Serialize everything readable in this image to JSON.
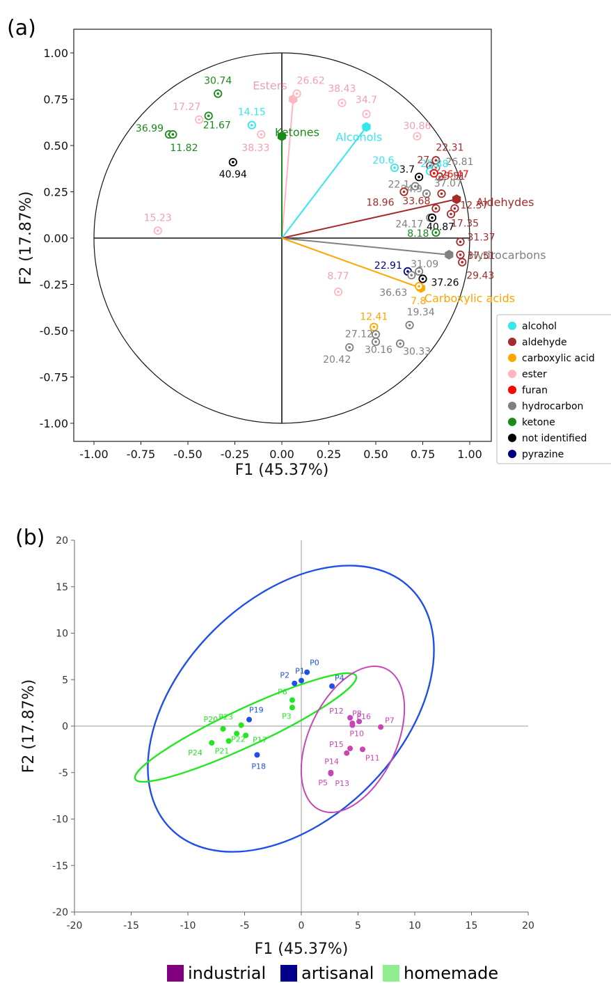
{
  "panels": {
    "a": "(a)",
    "b": "(b)"
  },
  "colors": {
    "alcohol": "#33e6f0",
    "aldehyde": "#a52a2a",
    "carboxylic acid": "#ffa500",
    "ester": "#ffb6c1",
    "furan": "#ff0000",
    "hydrocarbon": "#808080",
    "ketone": "#1a8a1a",
    "not identified": "#000000",
    "pyrazine": "#000080",
    "industrial": "#c845b4",
    "artisanal": "#1f4fe6",
    "homemade": "#22e622",
    "legend_industrial": "#800080",
    "legend_artisanal": "#00008b",
    "legend_homemade": "#90ee90"
  },
  "chart_data": [
    {
      "type": "scatter",
      "title": "",
      "xlabel": "F1 (45.37%)",
      "ylabel": "F2 (17.87%)",
      "xlim": [
        -1.1,
        1.05
      ],
      "ylim": [
        -1.1,
        1.1
      ],
      "xticks": [
        "-1.00",
        "-0.75",
        "-0.50",
        "-0.25",
        "0.00",
        "0.25",
        "0.50",
        "0.75",
        "1.00"
      ],
      "yticks": [
        "1.00",
        "0.75",
        "0.50",
        "0.25",
        "0.00",
        "-0.25",
        "-0.50",
        "-0.75",
        "-1.00"
      ],
      "legend": [
        "alcohol",
        "aldehyde",
        "carboxylic acid",
        "ester",
        "furan",
        "hydrocarbon",
        "ketone",
        "not identified",
        "pyrazine"
      ],
      "legend_position": "right",
      "vectors": [
        {
          "label": "Esters",
          "cls": "ester",
          "x": 0.06,
          "y": 0.75
        },
        {
          "label": "Ketones",
          "cls": "ketone",
          "x": 0.0,
          "y": 0.55
        },
        {
          "label": "Alcohols",
          "cls": "alcohol",
          "x": 0.45,
          "y": 0.6
        },
        {
          "label": "Aldehydes",
          "cls": "aldehyde",
          "x": 0.93,
          "y": 0.21
        },
        {
          "label": "Hydrocarbons",
          "cls": "hydrocarbon",
          "x": 0.89,
          "y": -0.09
        },
        {
          "label": "Carboxylic acids",
          "cls": "carboxylic acid",
          "x": 0.74,
          "y": -0.27
        }
      ],
      "points": [
        {
          "label": "30.74",
          "cls": "ketone",
          "x": -0.34,
          "y": 0.78
        },
        {
          "label": "26.62",
          "cls": "ester",
          "x": 0.08,
          "y": 0.78
        },
        {
          "label": "38.43",
          "cls": "ester",
          "x": 0.32,
          "y": 0.73
        },
        {
          "label": "34.7",
          "cls": "ester",
          "x": 0.45,
          "y": 0.67
        },
        {
          "label": "17.27",
          "cls": "ester",
          "x": -0.44,
          "y": 0.64
        },
        {
          "label": "21.67",
          "cls": "ketone",
          "x": -0.39,
          "y": 0.66
        },
        {
          "label": "14.15",
          "cls": "alcohol",
          "x": -0.16,
          "y": 0.61
        },
        {
          "label": "36.99",
          "cls": "ketone",
          "x": -0.6,
          "y": 0.56
        },
        {
          "label": "11.82",
          "cls": "ketone",
          "x": -0.58,
          "y": 0.56
        },
        {
          "label": "38.33",
          "cls": "ester",
          "x": -0.11,
          "y": 0.56
        },
        {
          "label": "40.94",
          "cls": "not identified",
          "x": -0.26,
          "y": 0.41
        },
        {
          "label": "30.86",
          "cls": "ester",
          "x": 0.72,
          "y": 0.55
        },
        {
          "label": "22.31",
          "cls": "aldehyde",
          "x": 0.82,
          "y": 0.42
        },
        {
          "label": "27",
          "cls": "aldehyde",
          "x": 0.79,
          "y": 0.39
        },
        {
          "label": "26.81",
          "cls": "hydrocarbon",
          "x": 0.82,
          "y": 0.38
        },
        {
          "label": "25.88",
          "cls": "alcohol",
          "x": 0.79,
          "y": 0.36
        },
        {
          "label": "37.07",
          "cls": "hydrocarbon",
          "x": 0.84,
          "y": 0.33
        },
        {
          "label": "20.6",
          "cls": "alcohol",
          "x": 0.6,
          "y": 0.38
        },
        {
          "label": "3.7",
          "cls": "not identified",
          "x": 0.73,
          "y": 0.33
        },
        {
          "label": "26.47",
          "cls": "furan",
          "x": 0.81,
          "y": 0.35
        },
        {
          "label": "22.1",
          "cls": "hydrocarbon",
          "x": 0.71,
          "y": 0.28
        },
        {
          "label": "34.9",
          "cls": "hydrocarbon",
          "x": 0.77,
          "y": 0.24
        },
        {
          "label": "25.51",
          "cls": "aldehyde",
          "x": 0.85,
          "y": 0.24
        },
        {
          "label": "18.96",
          "cls": "aldehyde",
          "x": 0.65,
          "y": 0.25
        },
        {
          "label": "33.68",
          "cls": "aldehyde",
          "x": 0.82,
          "y": 0.16
        },
        {
          "label": "12.37",
          "cls": "aldehyde",
          "x": 0.92,
          "y": 0.16
        },
        {
          "label": "17.35",
          "cls": "aldehyde",
          "x": 0.9,
          "y": 0.13
        },
        {
          "label": "24.17",
          "cls": "hydrocarbon",
          "x": 0.79,
          "y": 0.11
        },
        {
          "label": "40.87",
          "cls": "not identified",
          "x": 0.8,
          "y": 0.11
        },
        {
          "label": "8.18",
          "cls": "ketone",
          "x": 0.82,
          "y": 0.03
        },
        {
          "label": "31.37",
          "cls": "aldehyde",
          "x": 0.95,
          "y": -0.02
        },
        {
          "label": "37.51",
          "cls": "aldehyde",
          "x": 0.95,
          "y": -0.09
        },
        {
          "label": "29.43",
          "cls": "aldehyde",
          "x": 0.96,
          "y": -0.13
        },
        {
          "label": "22.91",
          "cls": "pyrazine",
          "x": 0.67,
          "y": -0.18
        },
        {
          "label": "31.09",
          "cls": "hydrocarbon",
          "x": 0.73,
          "y": -0.18
        },
        {
          "label": "36.63",
          "cls": "hydrocarbon",
          "x": 0.69,
          "y": -0.2
        },
        {
          "label": "37.26",
          "cls": "not identified",
          "x": 0.75,
          "y": -0.22
        },
        {
          "label": "7.8",
          "cls": "carboxylic acid",
          "x": 0.73,
          "y": -0.26
        },
        {
          "label": "8.77",
          "cls": "ester",
          "x": 0.3,
          "y": -0.29
        },
        {
          "label": "15.23",
          "cls": "ester",
          "x": -0.66,
          "y": 0.04
        },
        {
          "label": "12.41",
          "cls": "carboxylic acid",
          "x": 0.49,
          "y": -0.48
        },
        {
          "label": "19.34",
          "cls": "hydrocarbon",
          "x": 0.68,
          "y": -0.47
        },
        {
          "label": "27.12",
          "cls": "hydrocarbon",
          "x": 0.5,
          "y": -0.52
        },
        {
          "label": "20.42",
          "cls": "hydrocarbon",
          "x": 0.36,
          "y": -0.59
        },
        {
          "label": "30.16",
          "cls": "hydrocarbon",
          "x": 0.5,
          "y": -0.56
        },
        {
          "label": "30.33",
          "cls": "hydrocarbon",
          "x": 0.63,
          "y": -0.57
        }
      ]
    },
    {
      "type": "scatter",
      "title": "",
      "xlabel": "F1 (45.37%)",
      "ylabel": "F2 (17.87%)",
      "xlim": [
        -20,
        20
      ],
      "ylim": [
        -20,
        20
      ],
      "xticks": [
        "-20",
        "-15",
        "-10",
        "-5",
        "0",
        "5",
        "10",
        "15",
        "20"
      ],
      "yticks": [
        "20",
        "15",
        "10",
        "5",
        "0",
        "-5",
        "-10",
        "-15",
        "-20"
      ],
      "legend": [
        "industrial",
        "artisanal",
        "homemade"
      ],
      "legend_position": "bottom",
      "points": [
        {
          "label": "P0",
          "group": "artisanal",
          "x": 0.5,
          "y": 5.8
        },
        {
          "label": "P1",
          "group": "artisanal",
          "x": 0,
          "y": 4.9
        },
        {
          "label": "P2",
          "group": "artisanal",
          "x": -0.6,
          "y": 4.6
        },
        {
          "label": "P4",
          "group": "artisanal",
          "x": 2.7,
          "y": 4.3
        },
        {
          "label": "P19",
          "group": "artisanal",
          "x": -4.6,
          "y": 0.7
        },
        {
          "label": "P18",
          "group": "artisanal",
          "x": -3.9,
          "y": -3.1
        },
        {
          "label": "P6",
          "group": "homemade",
          "x": -0.8,
          "y": 2.8
        },
        {
          "label": "P3",
          "group": "homemade",
          "x": -0.8,
          "y": 2.0
        },
        {
          "label": "P23",
          "group": "homemade",
          "x": -5.3,
          "y": 0.1
        },
        {
          "label": "P20",
          "group": "homemade",
          "x": -6.9,
          "y": -0.3
        },
        {
          "label": "P22",
          "group": "homemade",
          "x": -5.7,
          "y": -0.8
        },
        {
          "label": "P17",
          "group": "homemade",
          "x": -4.9,
          "y": -1.0
        },
        {
          "label": "P21",
          "group": "homemade",
          "x": -6.4,
          "y": -1.6
        },
        {
          "label": "P24",
          "group": "homemade",
          "x": -7.9,
          "y": -1.8
        },
        {
          "label": "P12",
          "group": "industrial",
          "x": 4.3,
          "y": 0.9
        },
        {
          "label": "P8",
          "group": "industrial",
          "x": 5.1,
          "y": 0.5
        },
        {
          "label": "P16",
          "group": "industrial",
          "x": 4.5,
          "y": 0.3
        },
        {
          "label": "P10",
          "group": "industrial",
          "x": 4.5,
          "y": 0.1
        },
        {
          "label": "P7",
          "group": "industrial",
          "x": 7.0,
          "y": -0.1
        },
        {
          "label": "P15",
          "group": "industrial",
          "x": 4.3,
          "y": -2.4
        },
        {
          "label": "P14",
          "group": "industrial",
          "x": 4.0,
          "y": -2.9
        },
        {
          "label": "P11",
          "group": "industrial",
          "x": 5.4,
          "y": -2.5
        },
        {
          "label": "P5",
          "group": "industrial",
          "x": 2.6,
          "y": -5.0
        },
        {
          "label": "P13",
          "group": "industrial",
          "x": 2.6,
          "y": -5.1
        }
      ]
    }
  ]
}
